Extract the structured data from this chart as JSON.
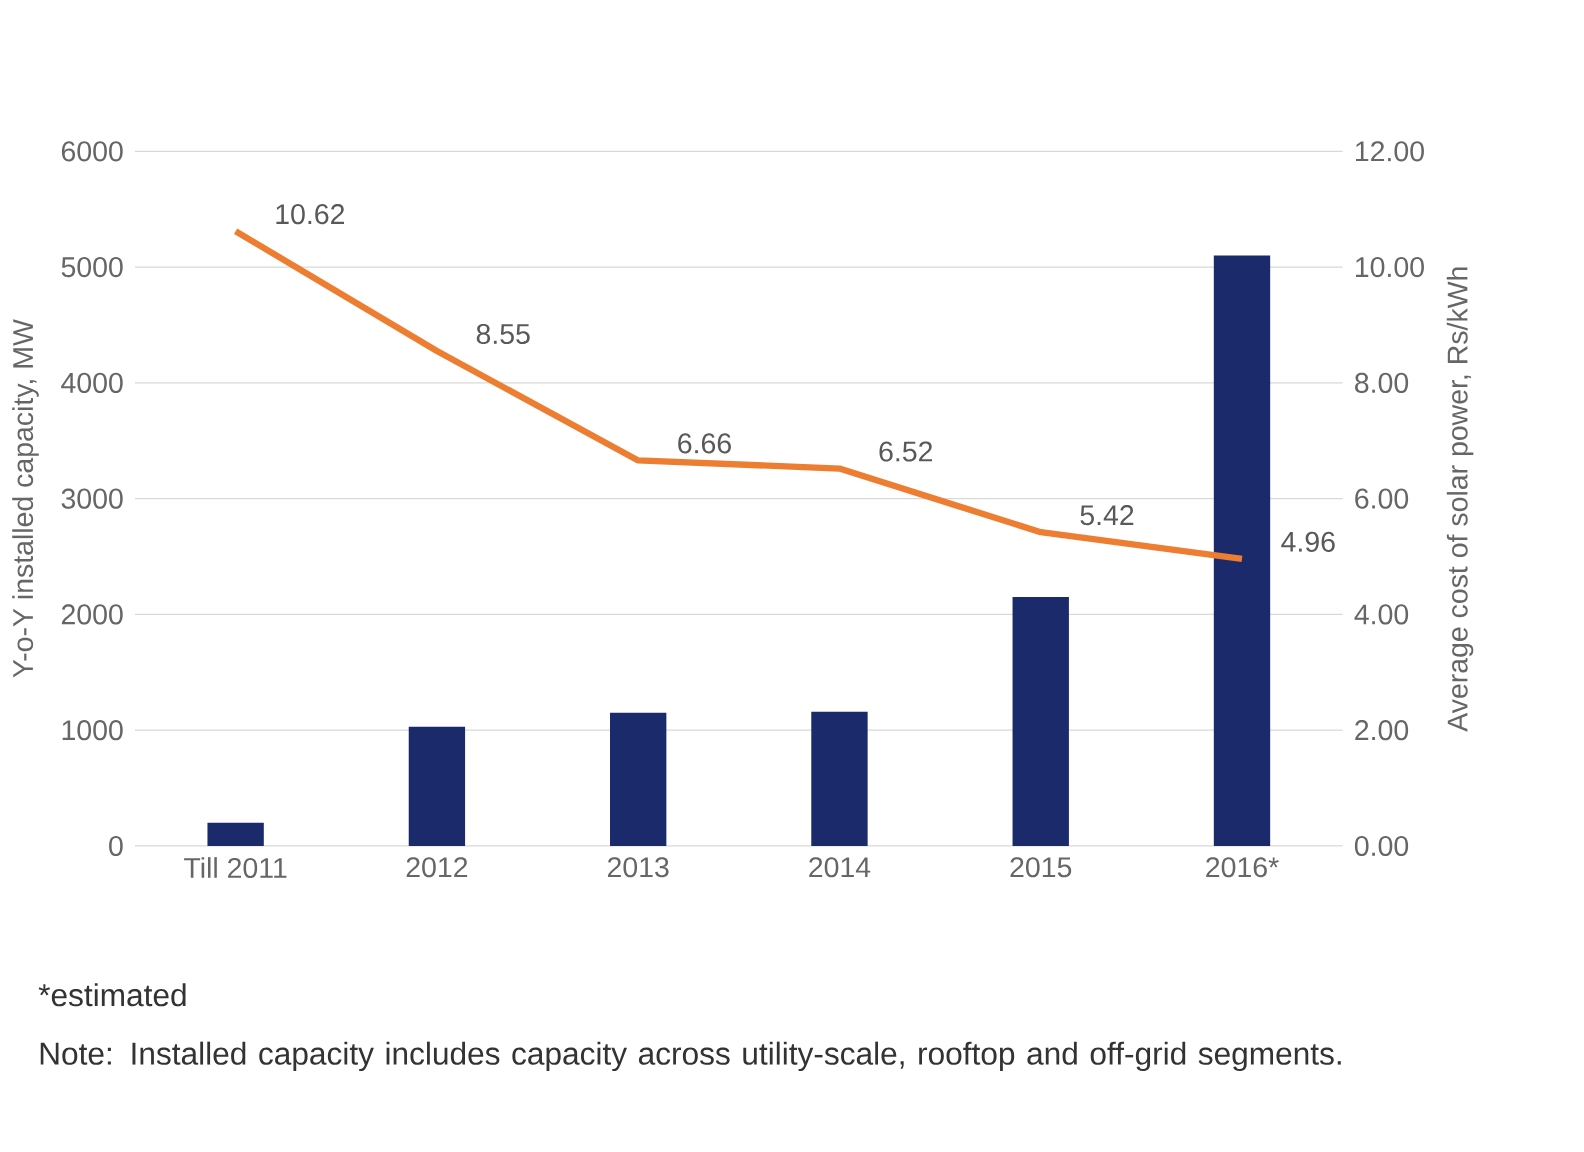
{
  "chart_data": {
    "type": "bar",
    "categories": [
      "Till 2011",
      "2012",
      "2013",
      "2014",
      "2015",
      "2016*"
    ],
    "series": [
      {
        "name": null,
        "color": "#1b2a6b",
        "values": [
          200,
          1030,
          1150,
          1160,
          2150,
          5100
        ]
      },
      {
        "name": null,
        "type": "line",
        "axis": "y2",
        "color": "#ed7d31",
        "values": [
          10.62,
          8.55,
          6.66,
          6.52,
          5.42,
          4.96
        ],
        "value_labels": [
          "10.62",
          "8.55",
          "6.66",
          "6.52",
          "5.42",
          "4.96"
        ]
      }
    ],
    "ylabel": "Y-o-Y installed capacity, MW",
    "y2label": "Average cost of solar power, Rs/kWh",
    "ylim": [
      0,
      6000
    ],
    "yticks": [
      0,
      1000,
      2000,
      3000,
      4000,
      5000,
      6000
    ],
    "y2lim": [
      0,
      12
    ],
    "y2ticks": [
      {
        "value": 0,
        "label": "0.00"
      },
      {
        "value": 2,
        "label": "2.00"
      },
      {
        "value": 4,
        "label": "4.00"
      },
      {
        "value": 6,
        "label": "6.00"
      },
      {
        "value": 8,
        "label": "8.00"
      },
      {
        "value": 10,
        "label": "10.00"
      },
      {
        "value": 12,
        "label": "12.00"
      }
    ],
    "grid": "y",
    "annotations": [
      "*estimated",
      "Note: Installed capacity includes capacity across utility-scale, rooftop and off-grid segments."
    ]
  }
}
